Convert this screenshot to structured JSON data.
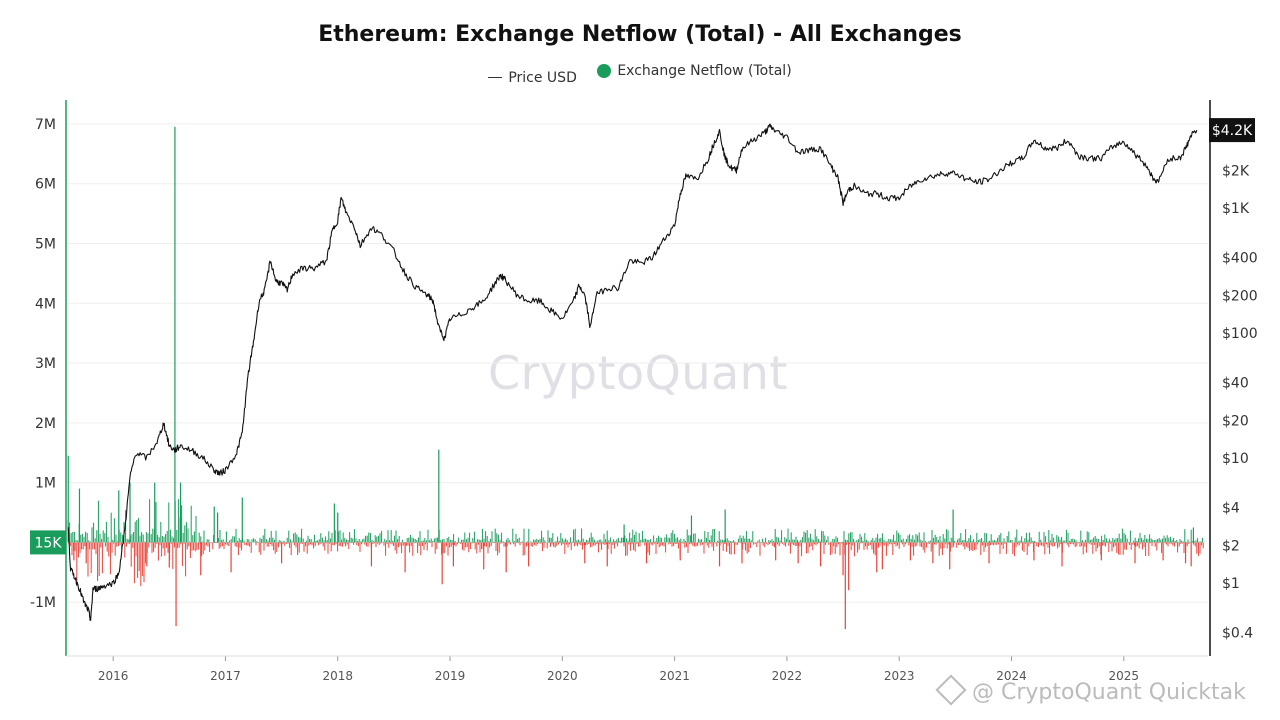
{
  "chart_data": {
    "type": "line",
    "title": "Ethereum: Exchange Netflow (Total) - All Exchanges",
    "legend": {
      "placement": "top-center",
      "price_label": "Price USD",
      "netflow_label": "Exchange Netflow (Total)"
    },
    "left_axis": {
      "ticks": [
        "7M",
        "6M",
        "5M",
        "4M",
        "3M",
        "2M",
        "1M",
        "-1M"
      ],
      "tick_values": [
        7000000,
        6000000,
        5000000,
        4000000,
        3000000,
        2000000,
        1000000,
        -1000000
      ],
      "range": [
        -1900000,
        7400000
      ],
      "current_badge": "15K",
      "current_value": 15000
    },
    "right_axis": {
      "scale": "log",
      "ticks": [
        "$2K",
        "$1K",
        "$400",
        "$200",
        "$100",
        "$40",
        "$20",
        "$10",
        "$4",
        "$2",
        "$1",
        "$0.4"
      ],
      "tick_values": [
        2000,
        1000,
        400,
        200,
        100,
        40,
        20,
        10,
        4,
        2,
        1,
        0.4
      ],
      "current_badge": "$4.2K",
      "current_value": 4200
    },
    "x_axis": {
      "ticks": [
        "2016",
        "2017",
        "2018",
        "2019",
        "2020",
        "2021",
        "2022",
        "2023",
        "2024",
        "2025"
      ],
      "tick_values": [
        2016,
        2017,
        2018,
        2019,
        2020,
        2021,
        2022,
        2023,
        2024,
        2025
      ],
      "range": [
        2015.58,
        2025.75
      ]
    },
    "colors": {
      "inflow": "#1a9c5c",
      "outflow": "#e8443a",
      "price": "#111111",
      "badge_netflow": "#1a9c5c",
      "badge_price": "#111111"
    },
    "series": [
      {
        "name": "Price USD",
        "scale": "log",
        "x": [
          2015.6,
          2015.62,
          2015.66,
          2015.7,
          2015.74,
          2015.78,
          2015.8,
          2015.82,
          2015.86,
          2015.92,
          2016.0,
          2016.05,
          2016.1,
          2016.15,
          2016.2,
          2016.3,
          2016.4,
          2016.45,
          2016.5,
          2016.55,
          2016.6,
          2016.7,
          2016.8,
          2016.9,
          2016.95,
          2017.0,
          2017.1,
          2017.15,
          2017.2,
          2017.25,
          2017.3,
          2017.35,
          2017.4,
          2017.45,
          2017.5,
          2017.55,
          2017.6,
          2017.7,
          2017.8,
          2017.9,
          2017.95,
          2018.0,
          2018.03,
          2018.08,
          2018.15,
          2018.2,
          2018.3,
          2018.4,
          2018.5,
          2018.6,
          2018.7,
          2018.8,
          2018.85,
          2018.9,
          2018.95,
          2019.0,
          2019.1,
          2019.2,
          2019.3,
          2019.4,
          2019.45,
          2019.5,
          2019.6,
          2019.7,
          2019.8,
          2019.9,
          2020.0,
          2020.1,
          2020.15,
          2020.2,
          2020.25,
          2020.3,
          2020.4,
          2020.5,
          2020.6,
          2020.7,
          2020.8,
          2020.9,
          2021.0,
          2021.05,
          2021.1,
          2021.2,
          2021.3,
          2021.35,
          2021.4,
          2021.45,
          2021.5,
          2021.55,
          2021.6,
          2021.7,
          2021.8,
          2021.85,
          2021.9,
          2022.0,
          2022.1,
          2022.2,
          2022.3,
          2022.4,
          2022.45,
          2022.5,
          2022.55,
          2022.6,
          2022.7,
          2022.8,
          2022.9,
          2023.0,
          2023.1,
          2023.2,
          2023.3,
          2023.4,
          2023.5,
          2023.6,
          2023.7,
          2023.8,
          2023.9,
          2024.0,
          2024.1,
          2024.2,
          2024.3,
          2024.4,
          2024.5,
          2024.6,
          2024.7,
          2024.8,
          2024.9,
          2025.0,
          2025.1,
          2025.2,
          2025.25,
          2025.3,
          2025.4,
          2025.5,
          2025.55,
          2025.6,
          2025.65
        ],
        "values": [
          2.8,
          1.3,
          1.1,
          0.9,
          0.7,
          0.6,
          0.5,
          0.9,
          0.9,
          0.95,
          1.0,
          1.2,
          2.5,
          7.0,
          11.0,
          10.0,
          14.0,
          19.0,
          12.5,
          11.5,
          12.5,
          11.5,
          10.0,
          8.0,
          7.5,
          8.0,
          11.0,
          16.0,
          45.0,
          85.0,
          180.0,
          220.0,
          380.0,
          260.0,
          250.0,
          220.0,
          300.0,
          330.0,
          330.0,
          380.0,
          650.0,
          800.0,
          1200.0,
          900.0,
          700.0,
          500.0,
          700.0,
          600.0,
          450.0,
          300.0,
          230.0,
          200.0,
          180.0,
          110.0,
          90.0,
          130.0,
          140.0,
          160.0,
          180.0,
          250.0,
          290.0,
          260.0,
          200.0,
          180.0,
          180.0,
          150.0,
          130.0,
          180.0,
          240.0,
          200.0,
          110.0,
          200.0,
          230.0,
          230.0,
          380.0,
          360.0,
          400.0,
          550.0,
          730.0,
          1300.0,
          1800.0,
          1700.0,
          2500.0,
          3300.0,
          4100.0,
          2500.0,
          2100.0,
          2000.0,
          3000.0,
          3500.0,
          4000.0,
          4500.0,
          4100.0,
          3700.0,
          2800.0,
          2900.0,
          3000.0,
          2100.0,
          1800.0,
          1100.0,
          1400.0,
          1500.0,
          1300.0,
          1300.0,
          1200.0,
          1200.0,
          1500.0,
          1700.0,
          1800.0,
          1900.0,
          1900.0,
          1700.0,
          1600.0,
          1700.0,
          2000.0,
          2300.0,
          2500.0,
          3500.0,
          3000.0,
          3000.0,
          3500.0,
          2600.0,
          2500.0,
          2500.0,
          3100.0,
          3400.0,
          2700.0,
          2200.0,
          1800.0,
          1600.0,
          2500.0,
          2500.0,
          3000.0,
          3800.0,
          4200.0
        ]
      },
      {
        "name": "Exchange Netflow (Total)",
        "description_values": "daily netflow spikes (ETH)",
        "x": [
          2015.6,
          2015.65,
          2015.7,
          2015.76,
          2016.05,
          2016.15,
          2016.3,
          2016.37,
          2016.5,
          2016.55,
          2016.56,
          2016.6,
          2016.78,
          2016.9,
          2016.93,
          2017.05,
          2017.15,
          2017.5,
          2017.97,
          2018.0,
          2018.3,
          2018.6,
          2018.9,
          2018.93,
          2019.03,
          2019.3,
          2019.5,
          2019.7,
          2020.2,
          2020.4,
          2020.55,
          2020.75,
          2021.05,
          2021.15,
          2021.4,
          2021.45,
          2021.6,
          2021.9,
          2022.1,
          2022.3,
          2022.5,
          2022.52,
          2022.55,
          2022.8,
          2022.85,
          2023.1,
          2023.3,
          2023.45,
          2023.48,
          2023.8,
          2024.2,
          2024.45,
          2024.8,
          2025.1,
          2025.35,
          2025.55,
          2025.6,
          2025.62
        ],
        "values": [
          1450000,
          -300000,
          900000,
          -350000,
          870000,
          1000000,
          -400000,
          1000000,
          -420000,
          6950000,
          -1400000,
          1000000,
          -550000,
          600000,
          500000,
          -500000,
          750000,
          -350000,
          650000,
          500000,
          -400000,
          -500000,
          1550000,
          -700000,
          -400000,
          -450000,
          -500000,
          -400000,
          -350000,
          -400000,
          300000,
          -350000,
          -300000,
          450000,
          -400000,
          550000,
          -350000,
          -300000,
          -350000,
          -400000,
          -550000,
          -1450000,
          -800000,
          -500000,
          -450000,
          -300000,
          -350000,
          -450000,
          550000,
          -350000,
          -300000,
          -400000,
          -300000,
          -350000,
          -300000,
          -350000,
          -400000,
          250000
        ]
      }
    ]
  },
  "branding": {
    "watermark": "CryptoQuant",
    "footer": "@ CryptoQuant Quicktak"
  }
}
